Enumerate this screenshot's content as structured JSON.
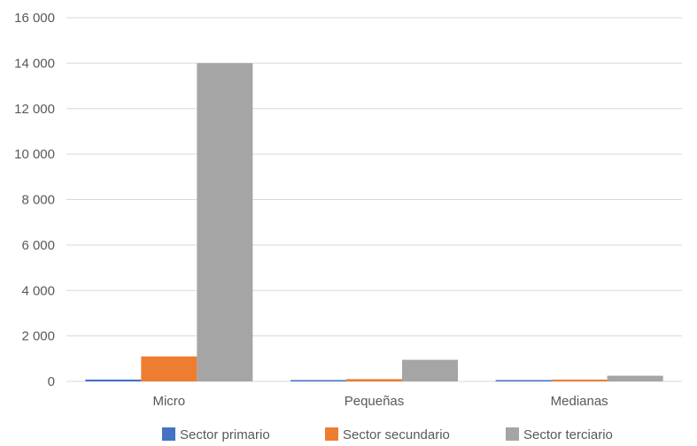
{
  "chart_data": {
    "type": "bar",
    "categories": [
      "Micro",
      "Pequeñas",
      "Medianas"
    ],
    "series": [
      {
        "name": "Sector primario",
        "color": "#4472c4",
        "values": [
          80,
          10,
          10
        ]
      },
      {
        "name": "Sector secundario",
        "color": "#ed7d31",
        "values": [
          1100,
          100,
          80
        ]
      },
      {
        "name": "Sector terciario",
        "color": "#a5a5a5",
        "values": [
          14000,
          950,
          250
        ]
      }
    ],
    "y_ticks": [
      "0",
      "2 000",
      "4 000",
      "6 000",
      "8 000",
      "10 000",
      "12 000",
      "14 000",
      "16 000"
    ],
    "ylim": [
      0,
      16000
    ],
    "grid": true,
    "legend_position": "bottom"
  }
}
